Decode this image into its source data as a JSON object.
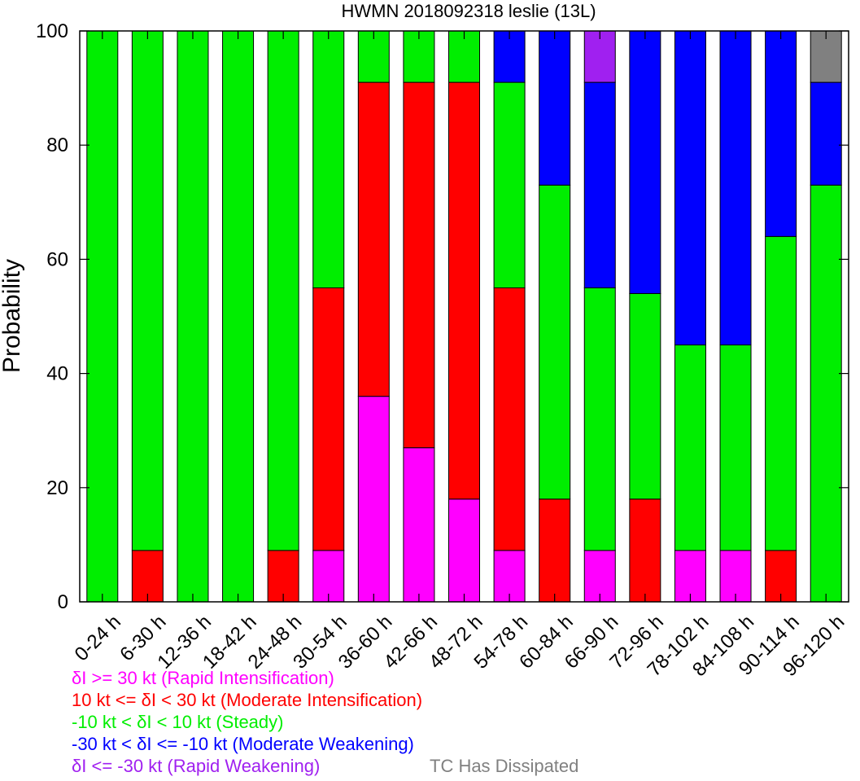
{
  "chart_data": {
    "type": "bar",
    "stacked": true,
    "title": "HWMN 2018092318 leslie (13L)",
    "xlabel": "",
    "ylabel": "Probability",
    "ylim": [
      0,
      100
    ],
    "yticks": [
      0,
      20,
      40,
      60,
      80,
      100
    ],
    "grid": false,
    "legend_position": "bottom",
    "categories": [
      "0-24 h",
      "6-30 h",
      "12-36 h",
      "18-42 h",
      "24-48 h",
      "30-54 h",
      "36-60 h",
      "42-66 h",
      "48-72 h",
      "54-78 h",
      "60-84 h",
      "66-90 h",
      "72-96 h",
      "78-102 h",
      "84-108 h",
      "90-114 h",
      "96-120 h"
    ],
    "series": [
      {
        "name": "δI >= 30 kt (Rapid Intensification)",
        "color": "#ff00ff",
        "values": [
          0,
          0,
          0,
          0,
          0,
          9,
          36,
          27,
          18,
          9,
          0,
          9,
          0,
          9,
          9,
          0,
          0
        ]
      },
      {
        "name": "10 kt <= δI < 30 kt (Moderate Intensification)",
        "color": "#ff0000",
        "values": [
          0,
          9,
          0,
          0,
          9,
          46,
          55,
          64,
          73,
          46,
          18,
          0,
          18,
          0,
          0,
          9,
          0
        ]
      },
      {
        "name": "-10 kt < δI < 10 kt (Steady)",
        "color": "#00ee00",
        "values": [
          100,
          91,
          100,
          100,
          91,
          45,
          9,
          9,
          9,
          36,
          55,
          46,
          36,
          36,
          36,
          55,
          73
        ]
      },
      {
        "name": "-30 kt < δI <= -10 kt (Moderate Weakening)",
        "color": "#0000ff",
        "values": [
          0,
          0,
          0,
          0,
          0,
          0,
          0,
          0,
          0,
          9,
          27,
          36,
          46,
          55,
          55,
          36,
          18
        ]
      },
      {
        "name": "δI <= -30 kt (Rapid Weakening)",
        "color": "#a020f0",
        "values": [
          0,
          0,
          0,
          0,
          0,
          0,
          0,
          0,
          0,
          0,
          0,
          9,
          0,
          0,
          0,
          0,
          0
        ]
      },
      {
        "name": "TC Has Dissipated",
        "color": "#808080",
        "values": [
          0,
          0,
          0,
          0,
          0,
          0,
          0,
          0,
          0,
          0,
          0,
          0,
          0,
          0,
          0,
          0,
          9
        ]
      }
    ]
  }
}
